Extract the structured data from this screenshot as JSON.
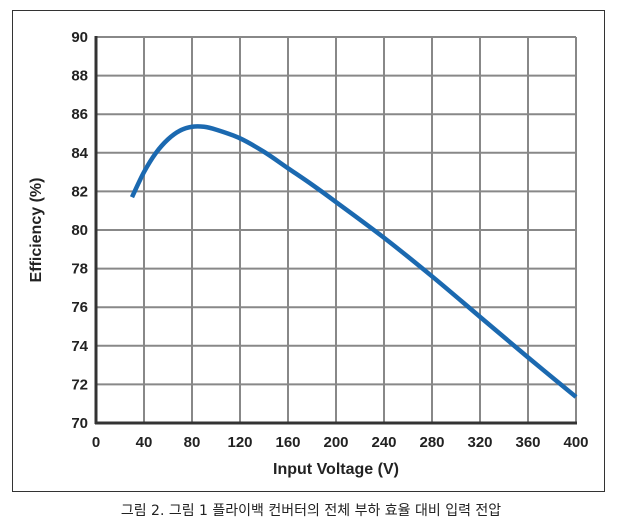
{
  "chart_data": {
    "type": "line",
    "title": "",
    "xlabel": "Input Voltage (V)",
    "ylabel": "Efficiency (%)",
    "xlim": [
      0,
      400
    ],
    "ylim": [
      70,
      90
    ],
    "xticks": [
      0,
      40,
      80,
      120,
      160,
      200,
      240,
      280,
      320,
      360,
      400
    ],
    "yticks": [
      70,
      72,
      74,
      76,
      78,
      80,
      82,
      84,
      86,
      88,
      90
    ],
    "grid": true,
    "series": [
      {
        "name": "Efficiency",
        "color": "#1b69b0",
        "x": [
          30,
          40,
          50,
          60,
          70,
          80,
          90,
          100,
          120,
          140,
          160,
          180,
          200,
          240,
          280,
          320,
          360,
          400
        ],
        "y": [
          81.7,
          83.0,
          84.0,
          84.7,
          85.15,
          85.35,
          85.35,
          85.2,
          84.75,
          84.05,
          83.2,
          82.35,
          81.45,
          79.6,
          77.6,
          75.5,
          73.4,
          71.35
        ]
      }
    ]
  },
  "caption": "그림 2. 그림 1 플라이백 컨버터의 전체 부하 효율 대비 입력 전압"
}
